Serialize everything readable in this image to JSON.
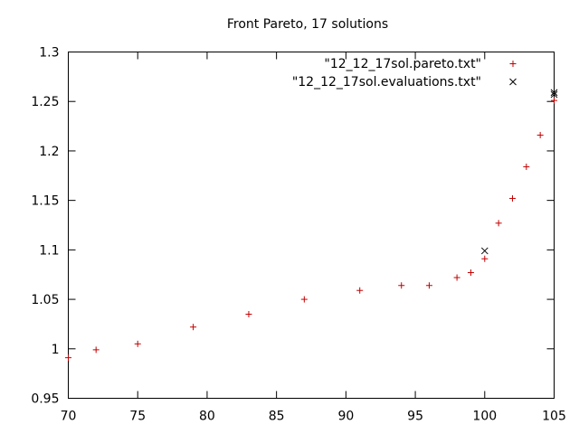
{
  "chart_data": {
    "type": "scatter",
    "title": "Front Pareto, 17 solutions",
    "xlabel": "",
    "ylabel": "",
    "xlim": [
      70,
      105
    ],
    "ylim": [
      0.95,
      1.3
    ],
    "xticks": [
      "70",
      "75",
      "80",
      "85",
      "90",
      "95",
      "100",
      "105"
    ],
    "yticks": [
      "0.95",
      "1",
      "1.05",
      "1.1",
      "1.15",
      "1.2",
      "1.25",
      "1.3"
    ],
    "grid": false,
    "legend_position": "top-right",
    "series": [
      {
        "name": "\"12_12_17sol.pareto.txt\"",
        "marker": "plus",
        "color": "#c00000",
        "points": [
          [
            70,
            0.991
          ],
          [
            72,
            0.999
          ],
          [
            75,
            1.005
          ],
          [
            79,
            1.022
          ],
          [
            83,
            1.035
          ],
          [
            87,
            1.05
          ],
          [
            91,
            1.059
          ],
          [
            94,
            1.064
          ],
          [
            96,
            1.064
          ],
          [
            98,
            1.072
          ],
          [
            99,
            1.077
          ],
          [
            100,
            1.091
          ],
          [
            101,
            1.127
          ],
          [
            102,
            1.152
          ],
          [
            103,
            1.184
          ],
          [
            104,
            1.216
          ],
          [
            105,
            1.251
          ]
        ]
      },
      {
        "name": "\"12_12_17sol.evaluations.txt\"",
        "marker": "cross",
        "color": "#000000",
        "points": [
          [
            100,
            1.099
          ],
          [
            105,
            1.259
          ],
          [
            105,
            1.257
          ]
        ]
      }
    ]
  }
}
